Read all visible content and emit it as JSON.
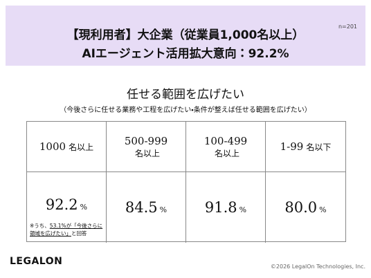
{
  "header": {
    "title_line1": "【現利用者】大企業（従業員1,000名以上）",
    "title_line2": "AIエージェント活用拡大意向：92.2%",
    "sample": "n=201"
  },
  "subtitle": "任せる範囲を広げたい",
  "description": "（今後さらに任せる業務や工程を広げたい・条件が整えば任せる範囲を広げたい）",
  "table": {
    "columns": [
      {
        "range": "1000",
        "unit": "名以上",
        "value": "92.2",
        "value_unit": "%"
      },
      {
        "range": "500-999",
        "unit": "名以上",
        "value": "84.5",
        "value_unit": "%"
      },
      {
        "range": "100-499",
        "unit": "名以上",
        "value": "91.8",
        "value_unit": "%"
      },
      {
        "range": "1-99",
        "unit": "名以下",
        "value": "80.0",
        "value_unit": "%"
      }
    ],
    "note": {
      "prefix": "※うち、",
      "highlight": "53.1%が「今後さらに領域を広げたい」",
      "suffix": "と回答"
    }
  },
  "footer": {
    "logo": "LEGALON",
    "copyright": "©2026 LegalOn Technologies, Inc."
  }
}
